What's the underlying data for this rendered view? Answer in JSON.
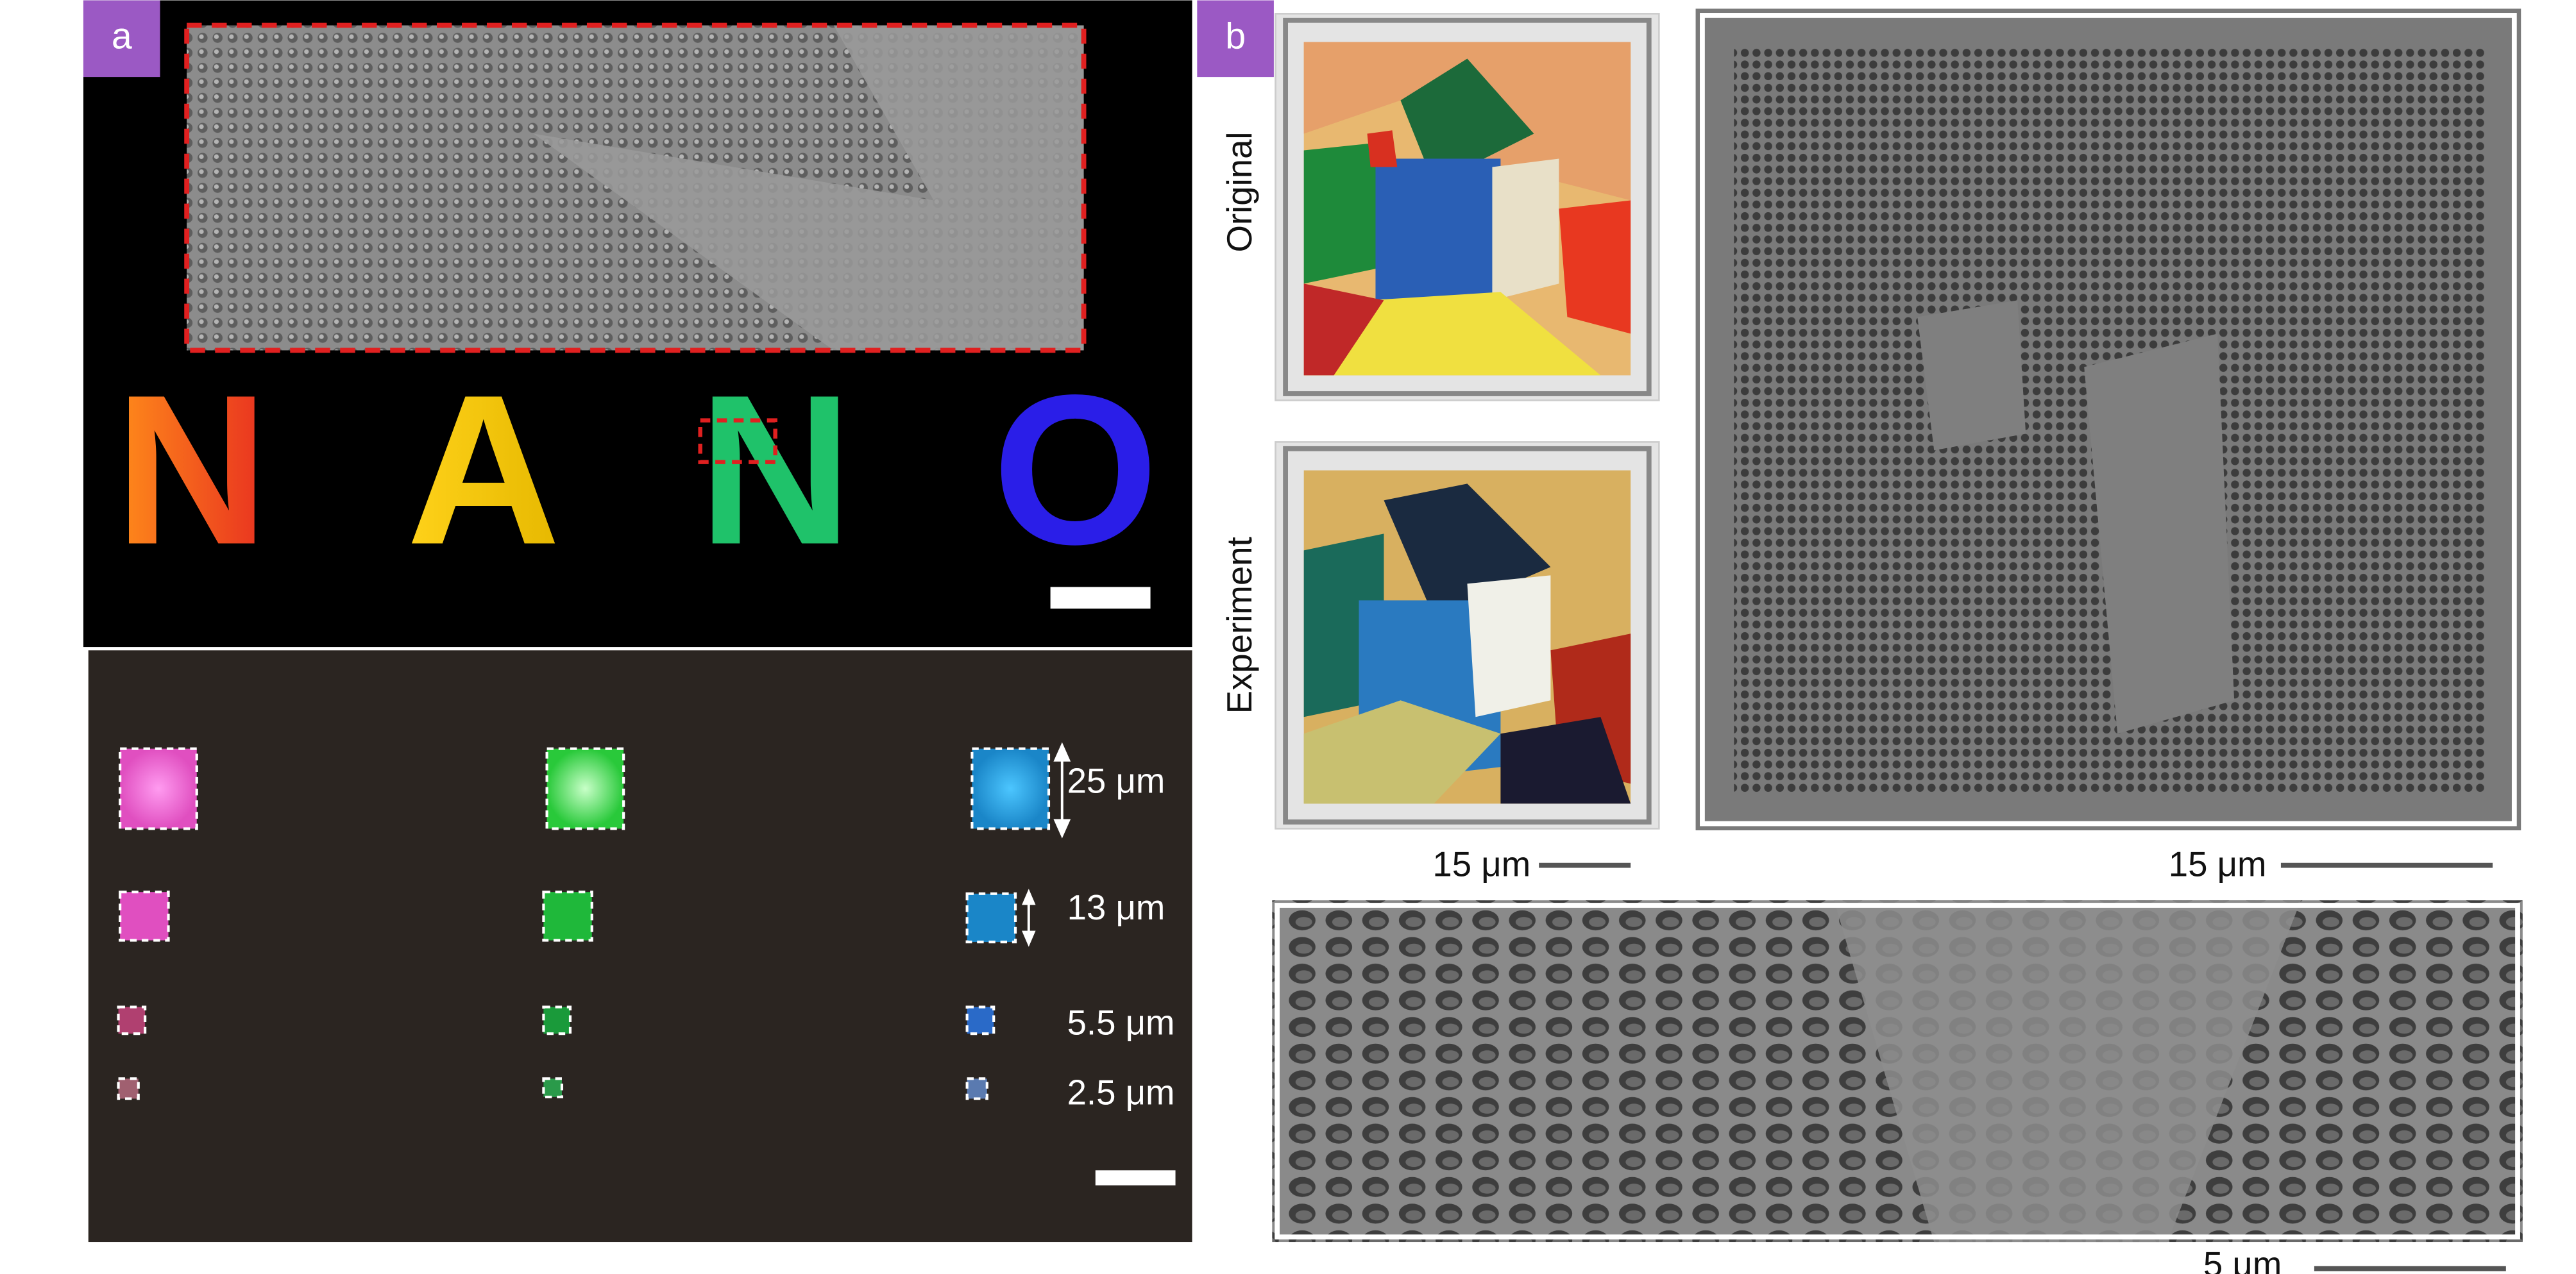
{
  "panel_a": {
    "label": "a",
    "letters": [
      "N",
      "A",
      "N",
      "O"
    ],
    "sizes": [
      "25 μm",
      "13 μm",
      "5.5 μm",
      "2.5 μm"
    ]
  },
  "panel_b": {
    "label": "b",
    "original_label": "Original",
    "experiment_label": "Experiment",
    "scale_labels": [
      "15 μm",
      "15 μm",
      "5 μm"
    ]
  }
}
